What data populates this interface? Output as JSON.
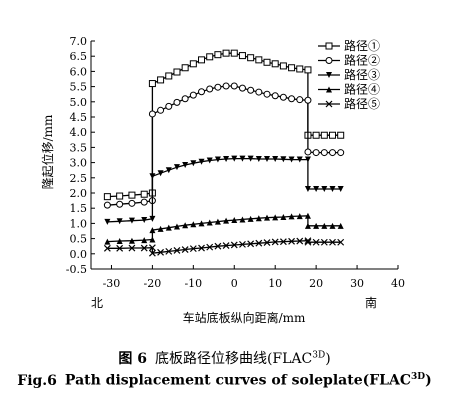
{
  "chart_data": {
    "type": "line",
    "xlabel": "车站底板纵向距离/mm",
    "ylabel": "隆起位移/mm",
    "xlim": [
      -35,
      40
    ],
    "ylim": [
      -0.5,
      7.0
    ],
    "xticks": [
      "-30",
      "-20",
      "-10",
      "0",
      "10",
      "20",
      "30",
      "40"
    ],
    "yticks": [
      "-0.5",
      "0.0",
      "0.5",
      "1.0",
      "1.5",
      "2.0",
      "2.5",
      "3.0",
      "3.5",
      "4.0",
      "4.5",
      "5.0",
      "5.5",
      "6.0",
      "6.5",
      "7.0"
    ],
    "xtick_values": [
      -30,
      -20,
      -10,
      0,
      10,
      20,
      30,
      40
    ],
    "ytick_values": [
      -0.5,
      0,
      0.5,
      1,
      1.5,
      2,
      2.5,
      3,
      3.5,
      4,
      4.5,
      5,
      5.5,
      6,
      6.5,
      7
    ],
    "direction_left": "北",
    "direction_right": "南",
    "legend_position": "top-right",
    "series": [
      {
        "name": "路径①",
        "marker": "square",
        "x": [
          -31,
          -28,
          -25,
          -22,
          -20,
          -20,
          -18,
          -16,
          -14,
          -12,
          -10,
          -8,
          -6,
          -4,
          -2,
          0,
          2,
          4,
          6,
          8,
          10,
          12,
          14,
          16,
          18,
          18,
          20,
          22,
          24,
          26
        ],
        "y": [
          1.88,
          1.9,
          1.93,
          1.96,
          2.0,
          5.6,
          5.72,
          5.85,
          5.98,
          6.12,
          6.25,
          6.38,
          6.48,
          6.55,
          6.6,
          6.6,
          6.52,
          6.45,
          6.38,
          6.3,
          6.25,
          6.18,
          6.12,
          6.08,
          6.05,
          3.9,
          3.9,
          3.9,
          3.9,
          3.9
        ]
      },
      {
        "name": "路径②",
        "marker": "circle",
        "x": [
          -31,
          -28,
          -25,
          -22,
          -20,
          -20,
          -18,
          -16,
          -14,
          -12,
          -10,
          -8,
          -6,
          -4,
          -2,
          0,
          2,
          4,
          6,
          8,
          10,
          12,
          14,
          16,
          18,
          18,
          20,
          22,
          24,
          26
        ],
        "y": [
          1.6,
          1.63,
          1.66,
          1.7,
          1.75,
          4.6,
          4.72,
          4.85,
          4.98,
          5.1,
          5.22,
          5.33,
          5.42,
          5.48,
          5.52,
          5.52,
          5.45,
          5.38,
          5.32,
          5.25,
          5.2,
          5.15,
          5.1,
          5.07,
          5.05,
          3.35,
          3.33,
          3.33,
          3.33,
          3.33
        ]
      },
      {
        "name": "路径③",
        "marker": "triangle-down",
        "x": [
          -31,
          -28,
          -25,
          -22,
          -20,
          -20,
          -18,
          -16,
          -14,
          -12,
          -10,
          -8,
          -6,
          -4,
          -2,
          0,
          2,
          4,
          6,
          8,
          10,
          12,
          14,
          16,
          18,
          18,
          20,
          22,
          24,
          26
        ],
        "y": [
          1.05,
          1.07,
          1.09,
          1.11,
          1.15,
          2.55,
          2.65,
          2.75,
          2.85,
          2.92,
          2.98,
          3.03,
          3.07,
          3.1,
          3.12,
          3.13,
          3.13,
          3.13,
          3.12,
          3.12,
          3.12,
          3.11,
          3.1,
          3.1,
          3.1,
          2.13,
          2.13,
          2.13,
          2.13,
          2.13
        ]
      },
      {
        "name": "路径④",
        "marker": "triangle-up",
        "x": [
          -31,
          -28,
          -25,
          -22,
          -20,
          -20,
          -18,
          -16,
          -14,
          -12,
          -10,
          -8,
          -6,
          -4,
          -2,
          0,
          2,
          4,
          6,
          8,
          10,
          12,
          14,
          16,
          18,
          18,
          20,
          22,
          24,
          26
        ],
        "y": [
          0.4,
          0.42,
          0.43,
          0.45,
          0.47,
          0.78,
          0.82,
          0.86,
          0.9,
          0.94,
          0.97,
          1.0,
          1.03,
          1.06,
          1.09,
          1.11,
          1.13,
          1.15,
          1.17,
          1.19,
          1.2,
          1.21,
          1.23,
          1.24,
          1.25,
          0.92,
          0.92,
          0.92,
          0.92,
          0.92
        ]
      },
      {
        "name": "路径⑤",
        "marker": "x",
        "x": [
          -31,
          -28,
          -25,
          -22,
          -20,
          -20,
          -18,
          -16,
          -14,
          -12,
          -10,
          -8,
          -6,
          -4,
          -2,
          0,
          2,
          4,
          6,
          8,
          10,
          12,
          14,
          16,
          18,
          18,
          20,
          22,
          24,
          26
        ],
        "y": [
          0.18,
          0.18,
          0.19,
          0.19,
          0.2,
          0.02,
          0.05,
          0.08,
          0.11,
          0.14,
          0.17,
          0.19,
          0.22,
          0.25,
          0.27,
          0.29,
          0.31,
          0.33,
          0.35,
          0.37,
          0.39,
          0.4,
          0.41,
          0.42,
          0.43,
          0.38,
          0.38,
          0.38,
          0.38,
          0.38
        ]
      }
    ]
  },
  "caption": {
    "cn_num": "图 6",
    "cn_text": "底板路径位移曲线(FLAC",
    "cn_sup": "3D",
    "cn_close": ")",
    "en_num": "Fig.6",
    "en_text": "Path displacement curves of soleplate(FLAC",
    "en_sup": "3D",
    "en_close": ")"
  }
}
